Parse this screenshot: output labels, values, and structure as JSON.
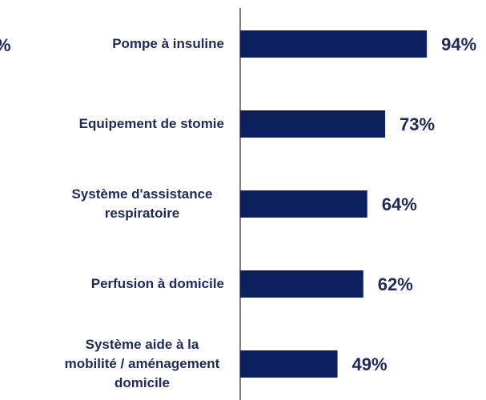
{
  "chart_data": {
    "type": "bar",
    "orientation": "horizontal",
    "annotation": "%",
    "categories": [
      "Pompe à insuline",
      "Equipement de stomie",
      "Système d'assistance respiratoire",
      "Perfusion à domicile",
      "Système aide à la mobilité / aménagement domicile"
    ],
    "values": [
      94,
      73,
      64,
      62,
      49
    ],
    "value_labels": [
      "94%",
      "73%",
      "64%",
      "62%",
      "49%"
    ],
    "color": "#0c1f5e",
    "xlim": [
      0,
      100
    ]
  }
}
